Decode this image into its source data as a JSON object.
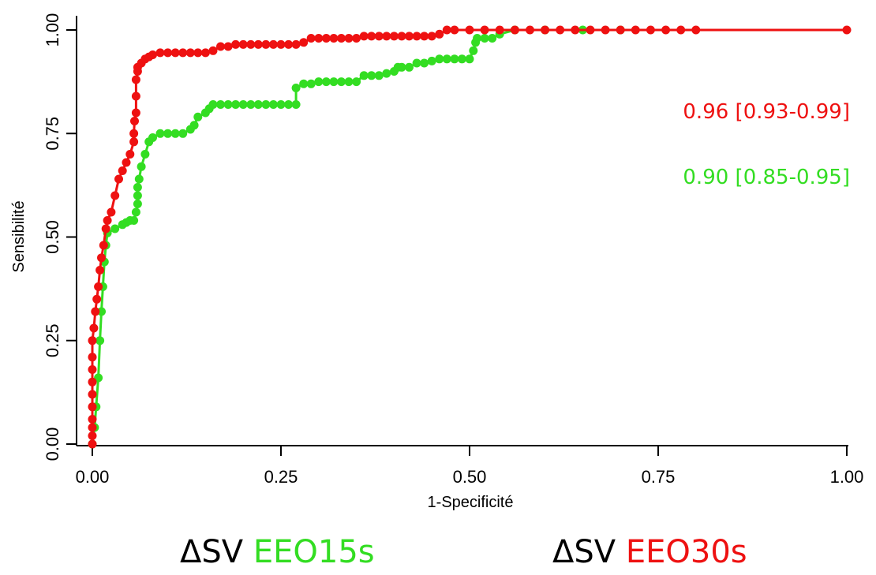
{
  "chart_data": {
    "type": "line",
    "xlabel": "1-Specificité",
    "ylabel": "Sensibilité",
    "xlim": [
      0,
      1
    ],
    "ylim": [
      0,
      1
    ],
    "x_ticks": [
      "0.00",
      "0.25",
      "0.50",
      "0.75",
      "1.00"
    ],
    "y_ticks": [
      "0.00",
      "0.25",
      "0.50",
      "0.75",
      "1.00"
    ],
    "grid": false,
    "series": [
      {
        "name": "EEO15s",
        "color": "#33dd22",
        "auc_label": "0.90 [0.85-0.95]",
        "x": [
          0.0,
          0.003,
          0.005,
          0.008,
          0.01,
          0.012,
          0.014,
          0.016,
          0.018,
          0.02,
          0.03,
          0.04,
          0.045,
          0.05,
          0.055,
          0.058,
          0.06,
          0.06,
          0.06,
          0.062,
          0.065,
          0.07,
          0.075,
          0.08,
          0.09,
          0.1,
          0.11,
          0.12,
          0.13,
          0.135,
          0.14,
          0.15,
          0.155,
          0.16,
          0.17,
          0.18,
          0.19,
          0.2,
          0.21,
          0.22,
          0.23,
          0.24,
          0.25,
          0.26,
          0.27,
          0.27,
          0.28,
          0.29,
          0.3,
          0.31,
          0.32,
          0.33,
          0.34,
          0.35,
          0.36,
          0.37,
          0.38,
          0.39,
          0.4,
          0.405,
          0.41,
          0.42,
          0.43,
          0.44,
          0.45,
          0.46,
          0.47,
          0.48,
          0.49,
          0.5,
          0.505,
          0.508,
          0.51,
          0.52,
          0.53,
          0.54,
          0.56,
          0.6,
          0.65,
          0.7
        ],
        "y": [
          0.0,
          0.04,
          0.09,
          0.16,
          0.25,
          0.32,
          0.38,
          0.44,
          0.48,
          0.51,
          0.52,
          0.53,
          0.535,
          0.54,
          0.54,
          0.56,
          0.58,
          0.6,
          0.62,
          0.64,
          0.67,
          0.7,
          0.73,
          0.74,
          0.75,
          0.75,
          0.75,
          0.75,
          0.76,
          0.77,
          0.79,
          0.8,
          0.81,
          0.82,
          0.82,
          0.82,
          0.82,
          0.82,
          0.82,
          0.82,
          0.82,
          0.82,
          0.82,
          0.82,
          0.82,
          0.86,
          0.87,
          0.87,
          0.875,
          0.875,
          0.875,
          0.875,
          0.875,
          0.875,
          0.89,
          0.89,
          0.89,
          0.895,
          0.9,
          0.91,
          0.91,
          0.91,
          0.92,
          0.92,
          0.925,
          0.93,
          0.93,
          0.93,
          0.93,
          0.93,
          0.95,
          0.97,
          0.98,
          0.98,
          0.98,
          0.99,
          1.0,
          1.0,
          1.0,
          1.0
        ]
      },
      {
        "name": "EEO30s",
        "color": "#ee1111",
        "auc_label": "0.96 [0.93-0.99]",
        "x": [
          0.0,
          0.0,
          0.0,
          0.0,
          0.0,
          0.0,
          0.0,
          0.0,
          0.0,
          0.0,
          0.002,
          0.004,
          0.006,
          0.008,
          0.01,
          0.012,
          0.015,
          0.018,
          0.02,
          0.025,
          0.03,
          0.035,
          0.04,
          0.045,
          0.05,
          0.055,
          0.055,
          0.056,
          0.058,
          0.058,
          0.058,
          0.06,
          0.06,
          0.065,
          0.07,
          0.075,
          0.08,
          0.09,
          0.1,
          0.11,
          0.12,
          0.13,
          0.14,
          0.15,
          0.16,
          0.17,
          0.18,
          0.19,
          0.2,
          0.21,
          0.22,
          0.23,
          0.24,
          0.25,
          0.26,
          0.27,
          0.28,
          0.29,
          0.3,
          0.31,
          0.32,
          0.33,
          0.34,
          0.35,
          0.36,
          0.37,
          0.38,
          0.39,
          0.4,
          0.41,
          0.42,
          0.43,
          0.44,
          0.45,
          0.46,
          0.47,
          0.48,
          0.5,
          0.52,
          0.54,
          0.56,
          0.58,
          0.6,
          0.62,
          0.64,
          0.66,
          0.68,
          0.7,
          0.72,
          0.74,
          0.76,
          0.78,
          0.8,
          1.0
        ],
        "y": [
          0.0,
          0.02,
          0.04,
          0.06,
          0.09,
          0.12,
          0.15,
          0.18,
          0.21,
          0.25,
          0.28,
          0.32,
          0.35,
          0.38,
          0.42,
          0.45,
          0.48,
          0.52,
          0.54,
          0.56,
          0.6,
          0.64,
          0.66,
          0.68,
          0.7,
          0.73,
          0.75,
          0.78,
          0.8,
          0.84,
          0.88,
          0.9,
          0.91,
          0.92,
          0.93,
          0.935,
          0.94,
          0.945,
          0.945,
          0.945,
          0.945,
          0.945,
          0.945,
          0.945,
          0.95,
          0.96,
          0.96,
          0.965,
          0.965,
          0.965,
          0.965,
          0.965,
          0.965,
          0.965,
          0.965,
          0.965,
          0.97,
          0.98,
          0.98,
          0.98,
          0.98,
          0.98,
          0.98,
          0.98,
          0.985,
          0.985,
          0.985,
          0.985,
          0.985,
          0.985,
          0.985,
          0.985,
          0.985,
          0.985,
          0.99,
          1.0,
          1.0,
          1.0,
          1.0,
          1.0,
          1.0,
          1.0,
          1.0,
          1.0,
          1.0,
          1.0,
          1.0,
          1.0,
          1.0,
          1.0,
          1.0,
          1.0,
          1.0,
          1.0
        ]
      }
    ]
  },
  "legend": [
    {
      "prefix": "ΔSV",
      "label": "EEO15s",
      "color": "#33dd22"
    },
    {
      "prefix": "ΔSV",
      "label": "EEO30s",
      "color": "#ee1111"
    }
  ]
}
